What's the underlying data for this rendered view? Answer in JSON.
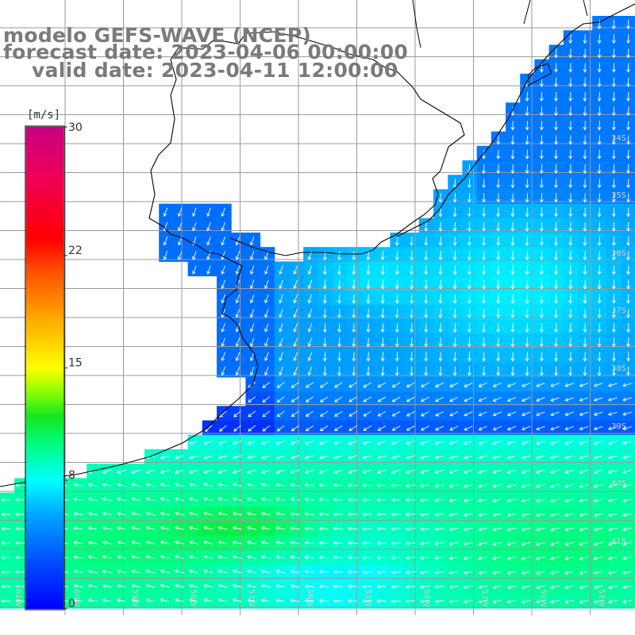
{
  "title": {
    "model": "modelo GEFS-WAVE (NCEP)",
    "forecast": "forecast date: 2023-04-06 00:00:00",
    "valid": "valid date: 2023-04-11 12:00:00"
  },
  "colorbar": {
    "unit": "[m/s]",
    "ticks": [
      {
        "value": 30,
        "label": "30"
      },
      {
        "value": 22,
        "label": "22"
      },
      {
        "value": 15,
        "label": "15"
      },
      {
        "value": 8,
        "label": "8"
      },
      {
        "value": 0,
        "label": "0"
      }
    ],
    "range": [
      0,
      30
    ],
    "colors": [
      "#0000ff",
      "#0066ff",
      "#00ccff",
      "#00ff88",
      "#33ff00",
      "#ccff00",
      "#ffff00",
      "#ffaa00",
      "#ff5500",
      "#ff0000",
      "#ee0055",
      "#cc0077"
    ]
  },
  "grid_labels": {
    "latitudes": [
      "34S",
      "35S",
      "36S",
      "37S",
      "38S",
      "39S",
      "40S",
      "41S"
    ],
    "longitudes": [
      "61W",
      "60W",
      "59W",
      "58W",
      "57W",
      "56W",
      "55W",
      "54W",
      "53W",
      "52W",
      "51W"
    ]
  },
  "field": {
    "variable": "wind speed",
    "units": "m/s"
  },
  "colors": {
    "title_text": "#7a7a7a",
    "grid": "#9a9a9a",
    "coastline": "#000000",
    "arrow": "#ffffff"
  }
}
